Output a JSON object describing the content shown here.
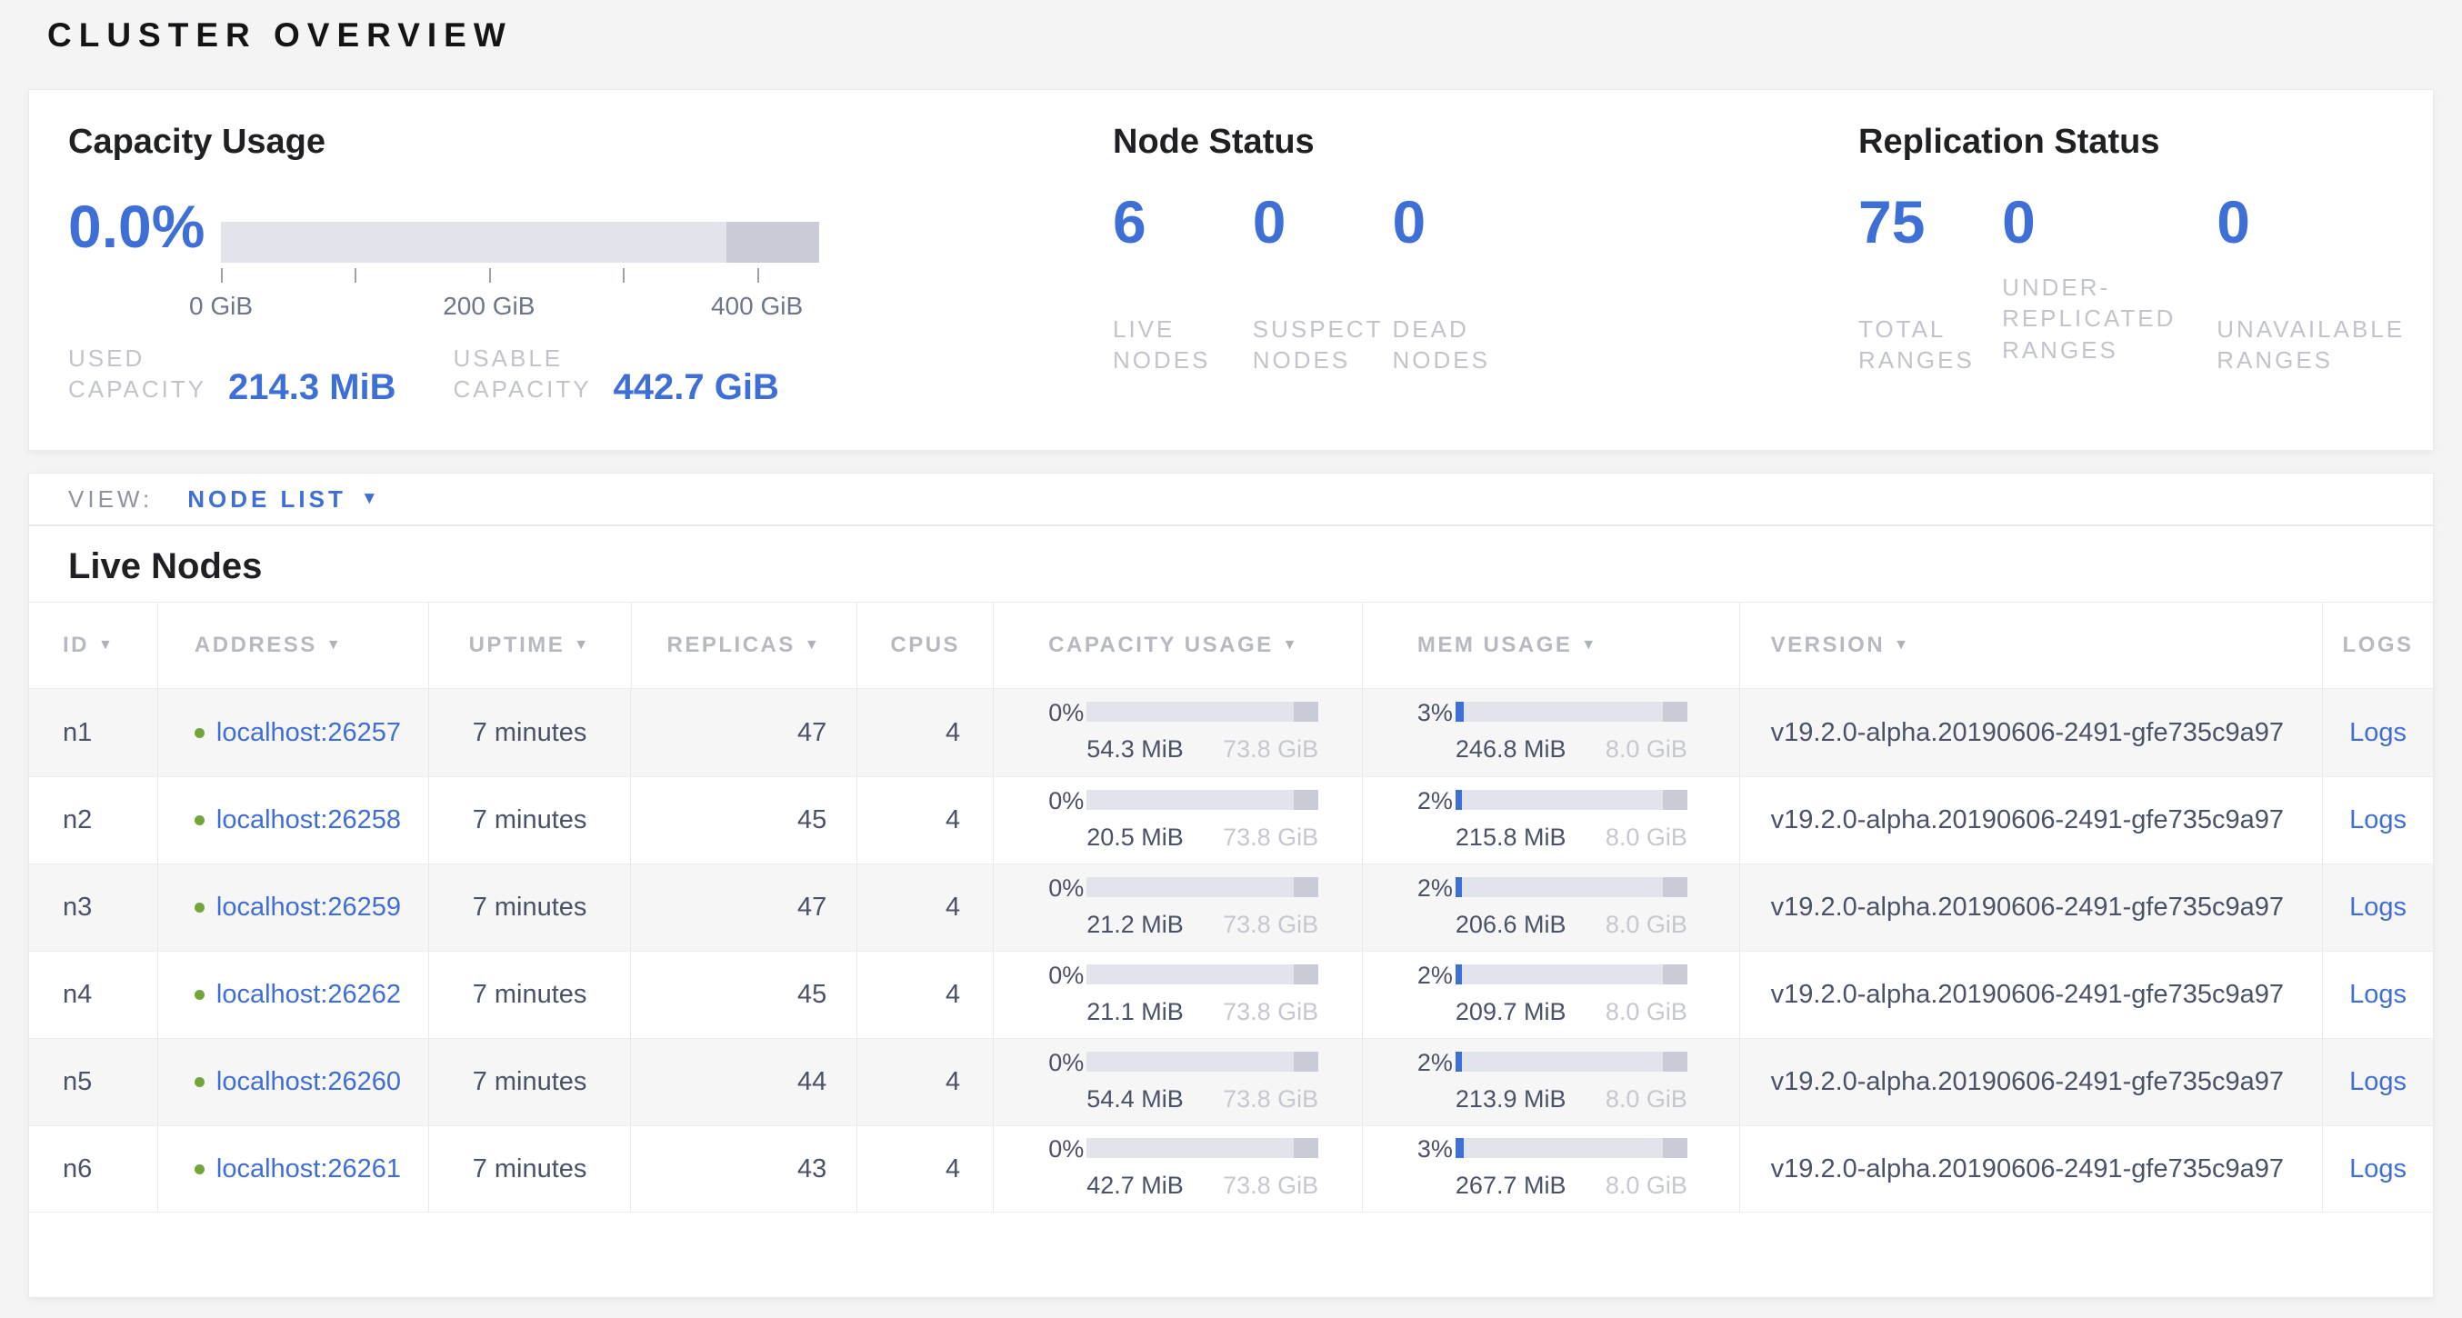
{
  "page": {
    "title": "CLUSTER OVERVIEW"
  },
  "colors": {
    "accent_blue": "#3e6fd6",
    "live_dot_green": "#72a63a",
    "bar_track": "#e2e4ec",
    "bar_reserved": "#c9ccd6",
    "page_background": "#f4f4f5"
  },
  "summary": {
    "capacity": {
      "title": "Capacity Usage",
      "percent": "0.0%",
      "chart_data": {
        "type": "bar",
        "title": "Capacity Usage",
        "percent_used": "0.0%",
        "tick_values_gib": [
          0,
          100,
          200,
          300,
          400
        ],
        "tick_labels": [
          "0 GiB",
          "",
          "200 GiB",
          "",
          "400 GiB"
        ],
        "axis_unit": "GiB"
      },
      "metrics": [
        {
          "label": "USED CAPACITY",
          "value": "214.3 MiB"
        },
        {
          "label": "USABLE CAPACITY",
          "value": "442.7 GiB"
        }
      ]
    },
    "node_status": {
      "title": "Node Status",
      "metrics": [
        {
          "value": "6",
          "label": "LIVE NODES"
        },
        {
          "value": "0",
          "label": "SUSPECT NODES"
        },
        {
          "value": "0",
          "label": "DEAD NODES"
        }
      ]
    },
    "replication": {
      "title": "Replication Status",
      "metrics": [
        {
          "value": "75",
          "label": "TOTAL RANGES"
        },
        {
          "value": "0",
          "label": "UNDER-REPLICATED RANGES"
        },
        {
          "value": "0",
          "label": "UNAVAILABLE RANGES"
        }
      ]
    }
  },
  "view_bar": {
    "label": "VIEW:",
    "selected": "NODE LIST",
    "caret": "▼"
  },
  "live_nodes": {
    "title": "Live Nodes",
    "sort_caret": "▼",
    "columns": [
      {
        "key": "id",
        "label": "ID",
        "sortable": true
      },
      {
        "key": "address",
        "label": "ADDRESS",
        "sortable": true
      },
      {
        "key": "uptime",
        "label": "UPTIME",
        "sortable": true
      },
      {
        "key": "replicas",
        "label": "REPLICAS",
        "sortable": true
      },
      {
        "key": "cpus",
        "label": "CPUS",
        "sortable": false
      },
      {
        "key": "capacity",
        "label": "CAPACITY USAGE",
        "sortable": true
      },
      {
        "key": "mem",
        "label": "MEM USAGE",
        "sortable": true
      },
      {
        "key": "version",
        "label": "VERSION",
        "sortable": true
      },
      {
        "key": "logs",
        "label": "LOGS",
        "sortable": false
      }
    ],
    "rows": [
      {
        "id": "n1",
        "address": "localhost:26257",
        "uptime": "7 minutes",
        "replicas": "47",
        "cpus": "4",
        "capacity": {
          "percent_label": "0%",
          "fill_pct": 0,
          "used": "54.3 MiB",
          "total": "73.8 GiB"
        },
        "mem": {
          "percent_label": "3%",
          "fill_pct": 3.5,
          "used": "246.8 MiB",
          "total": "8.0 GiB"
        },
        "version": "v19.2.0-alpha.20190606-2491-gfe735c9a97",
        "logs": "Logs"
      },
      {
        "id": "n2",
        "address": "localhost:26258",
        "uptime": "7 minutes",
        "replicas": "45",
        "cpus": "4",
        "capacity": {
          "percent_label": "0%",
          "fill_pct": 0,
          "used": "20.5 MiB",
          "total": "73.8 GiB"
        },
        "mem": {
          "percent_label": "2%",
          "fill_pct": 2.6,
          "used": "215.8 MiB",
          "total": "8.0 GiB"
        },
        "version": "v19.2.0-alpha.20190606-2491-gfe735c9a97",
        "logs": "Logs"
      },
      {
        "id": "n3",
        "address": "localhost:26259",
        "uptime": "7 minutes",
        "replicas": "47",
        "cpus": "4",
        "capacity": {
          "percent_label": "0%",
          "fill_pct": 0,
          "used": "21.2 MiB",
          "total": "73.8 GiB"
        },
        "mem": {
          "percent_label": "2%",
          "fill_pct": 2.6,
          "used": "206.6 MiB",
          "total": "8.0 GiB"
        },
        "version": "v19.2.0-alpha.20190606-2491-gfe735c9a97",
        "logs": "Logs"
      },
      {
        "id": "n4",
        "address": "localhost:26262",
        "uptime": "7 minutes",
        "replicas": "45",
        "cpus": "4",
        "capacity": {
          "percent_label": "0%",
          "fill_pct": 0,
          "used": "21.1 MiB",
          "total": "73.8 GiB"
        },
        "mem": {
          "percent_label": "2%",
          "fill_pct": 2.6,
          "used": "209.7 MiB",
          "total": "8.0 GiB"
        },
        "version": "v19.2.0-alpha.20190606-2491-gfe735c9a97",
        "logs": "Logs"
      },
      {
        "id": "n5",
        "address": "localhost:26260",
        "uptime": "7 minutes",
        "replicas": "44",
        "cpus": "4",
        "capacity": {
          "percent_label": "0%",
          "fill_pct": 0,
          "used": "54.4 MiB",
          "total": "73.8 GiB"
        },
        "mem": {
          "percent_label": "2%",
          "fill_pct": 2.6,
          "used": "213.9 MiB",
          "total": "8.0 GiB"
        },
        "version": "v19.2.0-alpha.20190606-2491-gfe735c9a97",
        "logs": "Logs"
      },
      {
        "id": "n6",
        "address": "localhost:26261",
        "uptime": "7 minutes",
        "replicas": "43",
        "cpus": "4",
        "capacity": {
          "percent_label": "0%",
          "fill_pct": 0,
          "used": "42.7 MiB",
          "total": "73.8 GiB"
        },
        "mem": {
          "percent_label": "3%",
          "fill_pct": 3.5,
          "used": "267.7 MiB",
          "total": "8.0 GiB"
        },
        "version": "v19.2.0-alpha.20190606-2491-gfe735c9a97",
        "logs": "Logs"
      }
    ]
  }
}
